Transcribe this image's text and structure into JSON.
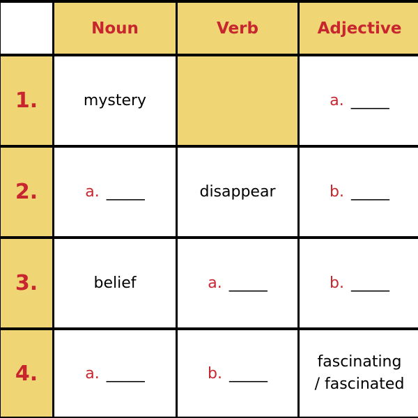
{
  "header": {
    "corner": "",
    "col1": "Noun",
    "col2": "Verb",
    "col3": "Adjective"
  },
  "rows": [
    {
      "num": "1.",
      "noun": "mystery",
      "adjective": {
        "letter": "a.",
        "blank": "_____"
      }
    },
    {
      "num": "2.",
      "noun": {
        "letter": "a.",
        "blank": "_____"
      },
      "verb": "disappear",
      "adjective": {
        "letter": "b.",
        "blank": "_____"
      }
    },
    {
      "num": "3.",
      "noun": "belief",
      "verb": {
        "letter": "a.",
        "blank": "_____"
      },
      "adjective": {
        "letter": "b.",
        "blank": "_____"
      }
    },
    {
      "num": "4.",
      "noun": {
        "letter": "a.",
        "blank": "_____"
      },
      "verb": {
        "letter": "b.",
        "blank": "_____"
      },
      "adjective": {
        "line1": "fascinating",
        "line2": "/ fascinated"
      }
    }
  ],
  "colors": {
    "header_bg": "#f0d574",
    "accent_red": "#c7262f",
    "border": "#000000"
  }
}
